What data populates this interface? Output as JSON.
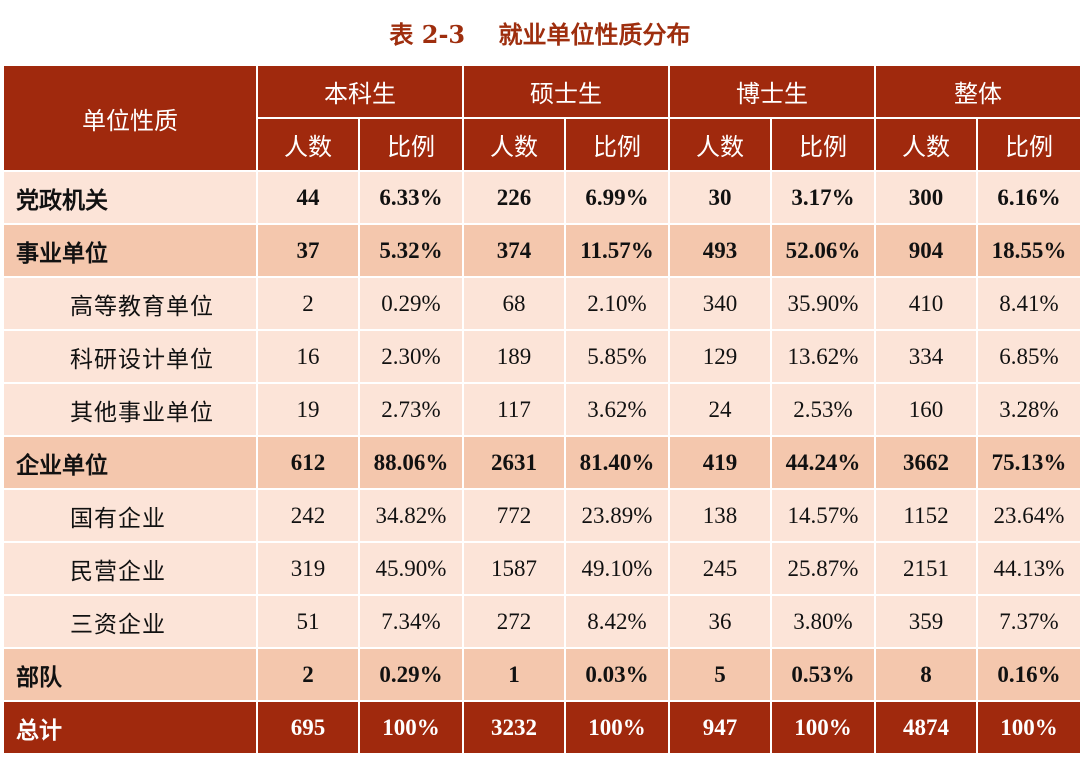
{
  "title": "表 2-3    就业单位性质分布",
  "header": {
    "row_label": "单位性质",
    "groups": [
      "本科生",
      "硕士生",
      "博士生",
      "整体"
    ],
    "sub": [
      "人数",
      "比例"
    ]
  },
  "rows": [
    {
      "label": "党政机关",
      "values": [
        "44",
        "6.33%",
        "226",
        "6.99%",
        "30",
        "3.17%",
        "300",
        "6.16%"
      ]
    },
    {
      "label": "事业单位",
      "values": [
        "37",
        "5.32%",
        "374",
        "11.57%",
        "493",
        "52.06%",
        "904",
        "18.55%"
      ]
    },
    {
      "label": "高等教育单位",
      "values": [
        "2",
        "0.29%",
        "68",
        "2.10%",
        "340",
        "35.90%",
        "410",
        "8.41%"
      ]
    },
    {
      "label": "科研设计单位",
      "values": [
        "16",
        "2.30%",
        "189",
        "5.85%",
        "129",
        "13.62%",
        "334",
        "6.85%"
      ]
    },
    {
      "label": "其他事业单位",
      "values": [
        "19",
        "2.73%",
        "117",
        "3.62%",
        "24",
        "2.53%",
        "160",
        "3.28%"
      ]
    },
    {
      "label": "企业单位",
      "values": [
        "612",
        "88.06%",
        "2631",
        "81.40%",
        "419",
        "44.24%",
        "3662",
        "75.13%"
      ]
    },
    {
      "label": "国有企业",
      "values": [
        "242",
        "34.82%",
        "772",
        "23.89%",
        "138",
        "14.57%",
        "1152",
        "23.64%"
      ]
    },
    {
      "label": "民营企业",
      "values": [
        "319",
        "45.90%",
        "1587",
        "49.10%",
        "245",
        "25.87%",
        "2151",
        "44.13%"
      ]
    },
    {
      "label": "三资企业",
      "values": [
        "51",
        "7.34%",
        "272",
        "8.42%",
        "36",
        "3.80%",
        "359",
        "7.37%"
      ]
    },
    {
      "label": "部队",
      "values": [
        "2",
        "0.29%",
        "1",
        "0.03%",
        "5",
        "0.53%",
        "8",
        "0.16%"
      ]
    },
    {
      "label": "总计",
      "values": [
        "695",
        "100%",
        "3232",
        "100%",
        "947",
        "100%",
        "4874",
        "100%"
      ]
    }
  ]
}
